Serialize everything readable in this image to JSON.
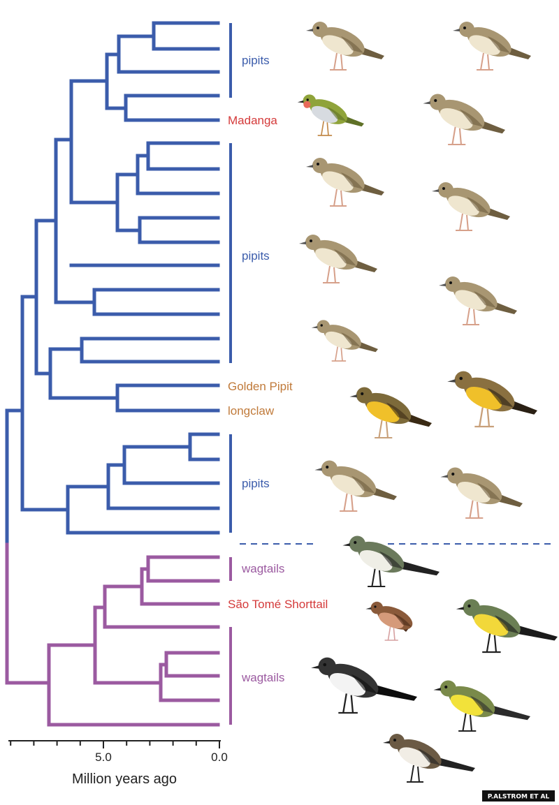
{
  "tree": {
    "groups": [
      {
        "id": "pipits-top",
        "label": "pipits",
        "color": "#3b5cab"
      },
      {
        "id": "madanga",
        "label": "Madanga",
        "color": "#d43a3a"
      },
      {
        "id": "pipits-mid",
        "label": "pipits",
        "color": "#3b5cab"
      },
      {
        "id": "golden-pipit",
        "label": "Golden Pipit",
        "color": "#c07a3a"
      },
      {
        "id": "longclaw",
        "label": "longclaw",
        "color": "#c07a3a"
      },
      {
        "id": "pipits-bottom",
        "label": "pipits",
        "color": "#3b5cab"
      },
      {
        "id": "wagtails-top",
        "label": "wagtails",
        "color": "#9b5aa0"
      },
      {
        "id": "sao-tome",
        "label": "São Tomé Shorttail",
        "color": "#d43a3a"
      },
      {
        "id": "wagtails-bottom",
        "label": "wagtails",
        "color": "#9b5aa0"
      }
    ],
    "colors": {
      "pipit_clade": "#3b5cab",
      "wagtail_clade": "#9b5aa0",
      "divider": "#3b5cab"
    }
  },
  "axis": {
    "title": "Million years ago",
    "ticks": [
      "5.0",
      "0.0"
    ]
  },
  "credit": "P.ALSTROM ET AL",
  "birds": [
    "pipit-illustration",
    "pipit-illustration",
    "madanga-illustration",
    "pipit-illustration",
    "pipit-illustration",
    "pipit-illustration",
    "pipit-illustration",
    "pipit-illustration",
    "pipit-illustration",
    "golden-pipit-illustration",
    "longclaw-illustration",
    "pipit-illustration",
    "pipit-illustration",
    "wagtail-illustration",
    "sao-tome-shorttail-illustration",
    "wagtail-illustration",
    "wagtail-illustration",
    "wagtail-illustration",
    "wagtail-illustration"
  ]
}
